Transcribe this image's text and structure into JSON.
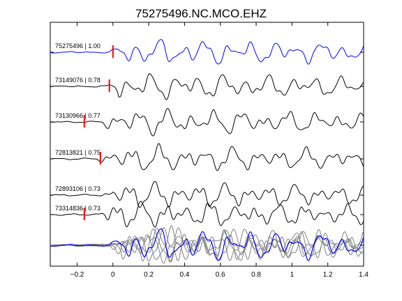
{
  "chart_data": {
    "type": "line",
    "title": "75275496.NC.MCO.EHZ",
    "xlabel": "",
    "ylabel": "",
    "xlim": [
      -0.35,
      1.4
    ],
    "x_ticks": [
      -0.2,
      0,
      0.2,
      0.4,
      0.6,
      0.8,
      1,
      1.2,
      1.4
    ],
    "x_tick_labels": [
      "−0.2",
      "0",
      "0.2",
      "0.4",
      "0.6",
      "0.8",
      "1",
      "1.2",
      "1.4"
    ],
    "grid": false,
    "colors": {
      "main_trace": "#0000ff",
      "other_trace": "#000000",
      "pick": "#ff0000",
      "stack_trace": "#808080"
    },
    "traces": [
      {
        "label": "75275496 | 1.00",
        "pick_time": 0.0,
        "color": "#0000ff",
        "seed": 1,
        "delay": 0.0
      },
      {
        "label": "73149076 | 0.78",
        "pick_time": -0.02,
        "color": "#000000",
        "seed": 2,
        "delay": -0.02
      },
      {
        "label": "73130966 | 0.77",
        "pick_time": -0.16,
        "color": "#000000",
        "seed": 3,
        "delay": -0.06
      },
      {
        "label": "72813821 | 0.75",
        "pick_time": -0.07,
        "color": "#000000",
        "seed": 4,
        "delay": -0.07
      },
      {
        "label": "72893106 | 0.73",
        "pick_time": null,
        "color": "#000000",
        "seed": 5,
        "delay": -0.05
      },
      {
        "label": "73314836 | 0.73",
        "pick_time": -0.16,
        "color": "#000000",
        "seed": 6,
        "delay": -0.09
      }
    ],
    "stack": {
      "label": "",
      "color_main": "#0000ff",
      "color_others": "#808080"
    }
  }
}
